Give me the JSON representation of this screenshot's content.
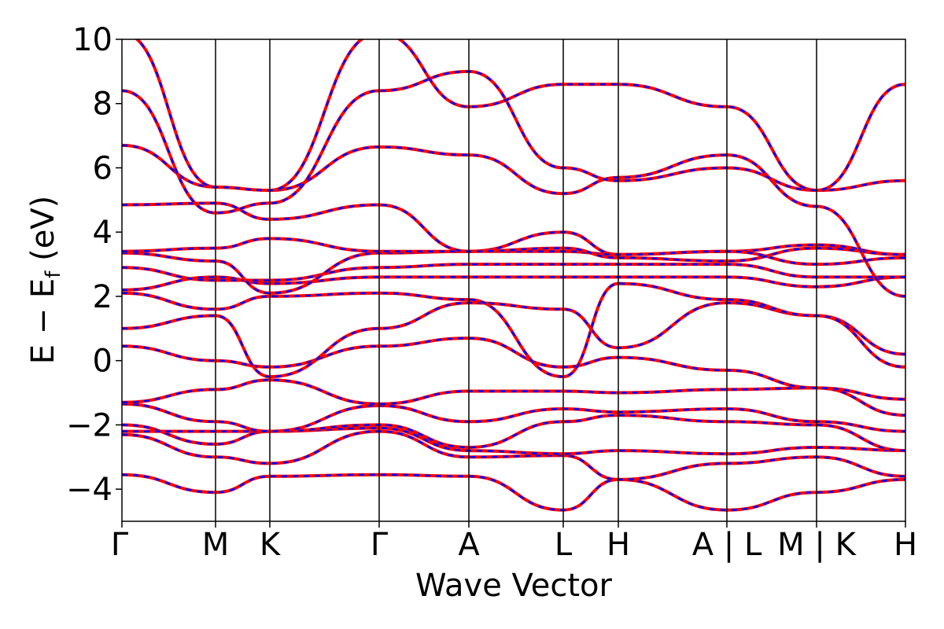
{
  "chart_data": {
    "type": "line",
    "xlabel": "Wave Vector",
    "ylabel_main": "E − E",
    "ylabel_sub": "f",
    "ylabel_unit": " (eV)",
    "ylim": [
      -5,
      10
    ],
    "yticks": [
      -4,
      -2,
      0,
      2,
      4,
      6,
      8,
      10
    ],
    "xlim": [
      0,
      11.5
    ],
    "kpoints": [
      {
        "label": "Γ",
        "x": 0.0
      },
      {
        "label": "M",
        "x": 1.8
      },
      {
        "label": "K",
        "x": 2.85
      },
      {
        "label": "Γ",
        "x": 4.95
      },
      {
        "label": "A",
        "x": 6.65
      },
      {
        "label": "L",
        "x": 8.45
      },
      {
        "label": "H",
        "x": 9.5
      },
      {
        "label": "A | L",
        "x": 11.5
      },
      {
        "label": "M | K",
        "x": 11.5
      },
      {
        "label": "H",
        "x": 11.5
      }
    ],
    "colors": {
      "primary": "#ff0000",
      "overlay": "#0000ff"
    },
    "legend": "none",
    "grid": false
  }
}
